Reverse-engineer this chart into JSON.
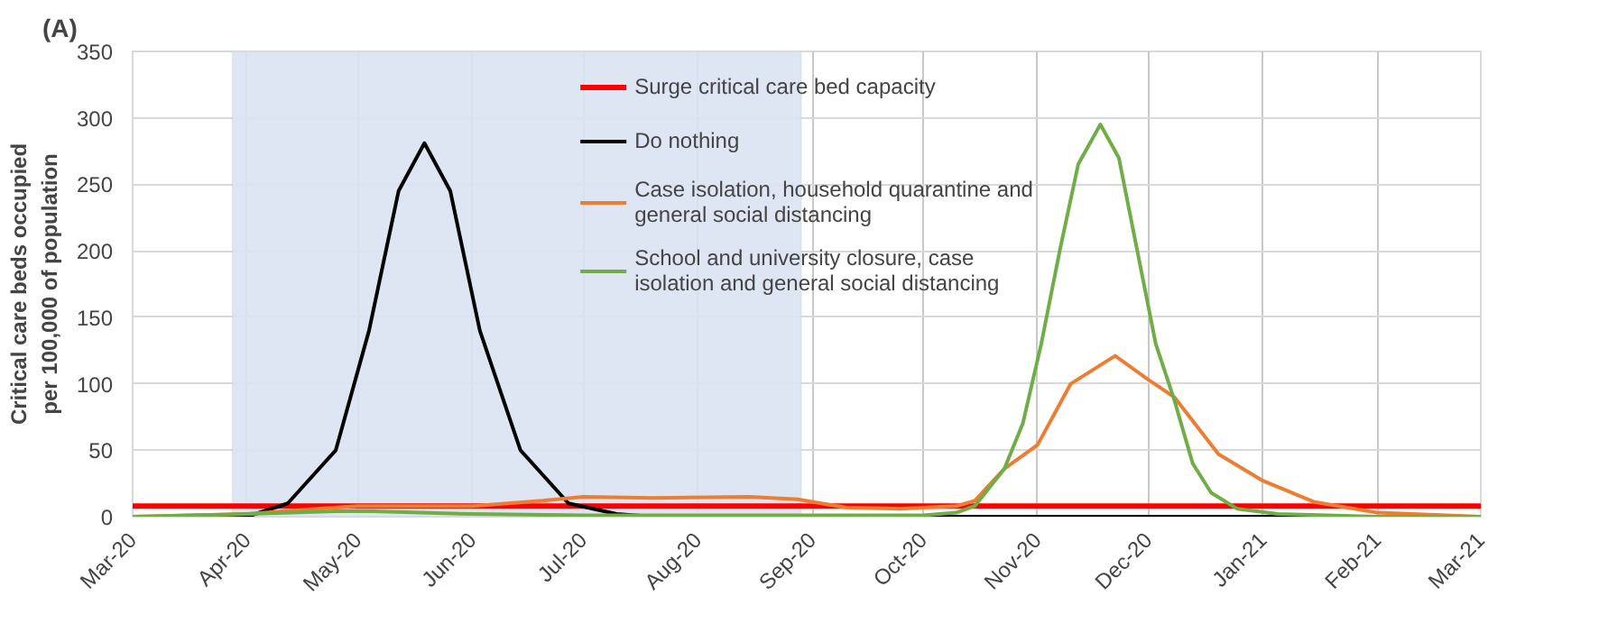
{
  "chart_data": {
    "type": "line",
    "title": "(A)",
    "ylabel": "Critical care beds occupied per 100,000 of population",
    "xlim": [
      "2020-03-01",
      "2021-03-01"
    ],
    "xticks": [
      {
        "value": "2020-03-01",
        "label": "Mar-20"
      },
      {
        "value": "2020-04-01",
        "label": "Apr-20"
      },
      {
        "value": "2020-05-01",
        "label": "May-20"
      },
      {
        "value": "2020-06-01",
        "label": "Jun-20"
      },
      {
        "value": "2020-07-01",
        "label": "Jul-20"
      },
      {
        "value": "2020-08-01",
        "label": "Aug-20"
      },
      {
        "value": "2020-09-01",
        "label": "Sep-20"
      },
      {
        "value": "2020-10-01",
        "label": "Oct-20"
      },
      {
        "value": "2020-11-01",
        "label": "Nov-20"
      },
      {
        "value": "2020-12-01",
        "label": "Dec-20"
      },
      {
        "value": "2021-01-01",
        "label": "Jan-21"
      },
      {
        "value": "2021-02-01",
        "label": "Feb-21"
      },
      {
        "value": "2021-03-01",
        "label": "Mar-21"
      }
    ],
    "ylim": [
      0,
      350
    ],
    "yticks": [
      0,
      50,
      100,
      150,
      200,
      250,
      300,
      350
    ],
    "grid": true,
    "legend": "top",
    "line_style": "solid",
    "marker": "none",
    "ref_lines": [
      {
        "axis": "y",
        "value": 8,
        "label": "Surge critical care bed capacity",
        "color": "#ff0000"
      }
    ],
    "bands": [
      {
        "axis": "x",
        "from": "2020-03-28",
        "to": "2020-08-29",
        "color": "#dae3f3"
      }
    ],
    "series": [
      {
        "name": "Do nothing",
        "color": "#000000",
        "x": [
          "2020-03-01",
          "2020-04-01",
          "2020-04-12",
          "2020-04-25",
          "2020-05-04",
          "2020-05-12",
          "2020-05-19",
          "2020-05-26",
          "2020-06-03",
          "2020-06-14",
          "2020-06-27",
          "2020-07-10",
          "2020-07-20",
          "2021-03-01"
        ],
        "values": [
          0,
          0,
          10,
          50,
          140,
          245,
          281,
          245,
          140,
          50,
          10,
          2,
          0,
          0
        ]
      },
      {
        "name": "Case isolation, household quarantine and general social distancing",
        "color": "#ed7d31",
        "x": [
          "2020-03-01",
          "2020-04-01",
          "2020-04-20",
          "2020-05-01",
          "2020-06-01",
          "2020-06-20",
          "2020-07-01",
          "2020-07-20",
          "2020-08-15",
          "2020-08-28",
          "2020-09-10",
          "2020-09-25",
          "2020-10-10",
          "2020-10-15",
          "2020-10-23",
          "2020-11-01",
          "2020-11-10",
          "2020-11-22",
          "2020-12-01",
          "2020-12-08",
          "2020-12-20",
          "2021-01-01",
          "2021-01-15",
          "2021-02-01",
          "2021-03-01"
        ],
        "values": [
          0,
          2,
          6,
          8,
          8,
          12,
          15,
          14,
          15,
          13,
          7,
          6,
          8,
          12,
          36,
          54,
          100,
          121,
          103,
          90,
          47,
          27,
          11,
          3,
          0
        ]
      },
      {
        "name": "School and university closure, case isolation and general social distancing",
        "color": "#70ad47",
        "x": [
          "2020-03-01",
          "2020-04-01",
          "2020-04-25",
          "2020-05-05",
          "2020-06-01",
          "2020-07-01",
          "2020-10-01",
          "2020-10-10",
          "2020-10-15",
          "2020-10-23",
          "2020-10-28",
          "2020-11-02",
          "2020-11-07",
          "2020-11-12",
          "2020-11-18",
          "2020-11-23",
          "2020-11-28",
          "2020-12-03",
          "2020-12-08",
          "2020-12-13",
          "2020-12-18",
          "2020-12-25",
          "2021-01-05",
          "2021-02-01",
          "2021-03-01"
        ],
        "values": [
          0,
          2,
          4,
          4,
          2,
          1,
          1,
          3,
          8,
          36,
          70,
          130,
          200,
          265,
          295,
          270,
          200,
          130,
          88,
          40,
          18,
          6,
          2,
          0,
          0
        ]
      }
    ]
  }
}
